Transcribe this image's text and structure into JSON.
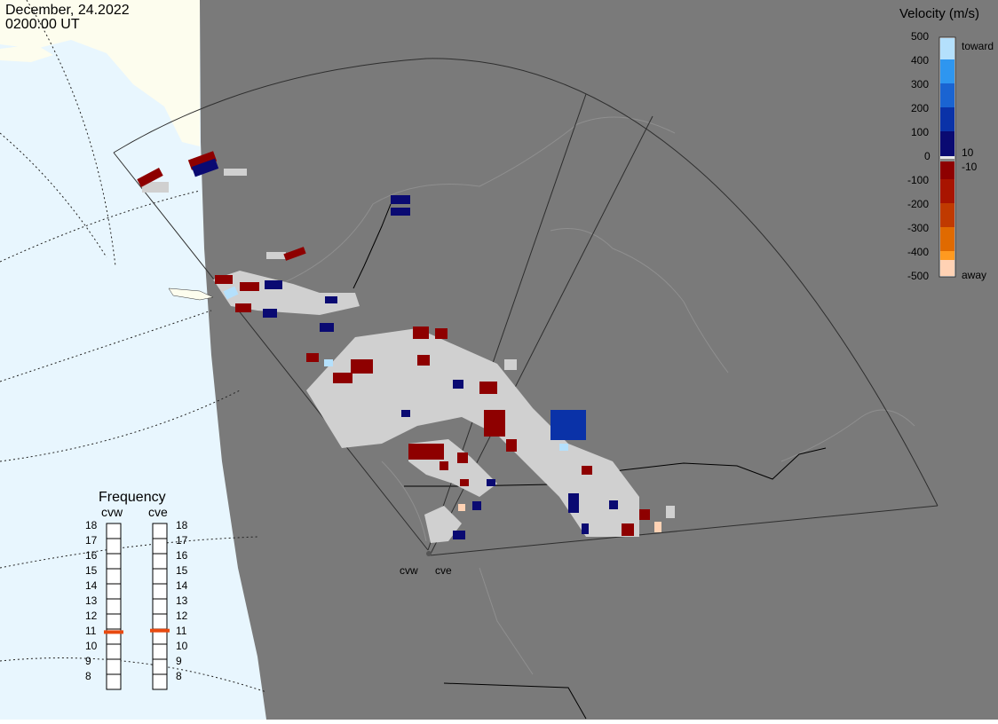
{
  "header": {
    "date": "December, 24.2022",
    "time": "0200:00 UT"
  },
  "colorbar": {
    "title": "Velocity (m/s)",
    "ticks": [
      "500",
      "400",
      "300",
      "200",
      "100",
      "0",
      "-100",
      "-200",
      "-300",
      "-400",
      "-500"
    ],
    "label_toward": "toward",
    "label_away": "away",
    "label_pos_threshold": "10",
    "label_neg_threshold": "-10",
    "colors": [
      "#ffd2b4",
      "#ff9a20",
      "#e06a00",
      "#c03a00",
      "#a81400",
      "#8e0000",
      "#e8e8e8",
      "#0a0a72",
      "#0a32a8",
      "#1a64d2",
      "#2e96f0",
      "#b4e0fc"
    ]
  },
  "frequency": {
    "title": "Frequency",
    "radars": [
      {
        "code": "cvw",
        "value_mhz": 10.8
      },
      {
        "code": "cve",
        "value_mhz": 10.9
      }
    ],
    "ticks": [
      "18",
      "17",
      "16",
      "15",
      "14",
      "13",
      "12",
      "11",
      "10",
      "9",
      "8"
    ],
    "marker_color": "#e84a10"
  },
  "map": {
    "ocean_color": "#e8f6fe",
    "land_dark_color": "#7a7a7a",
    "land_light_color": "#fdfdee",
    "coast_color": "#8f8f8f",
    "border_color": "#000000",
    "station_labels": [
      "cvw",
      "cve"
    ],
    "groundscatter_color": "#d0d0d0"
  }
}
